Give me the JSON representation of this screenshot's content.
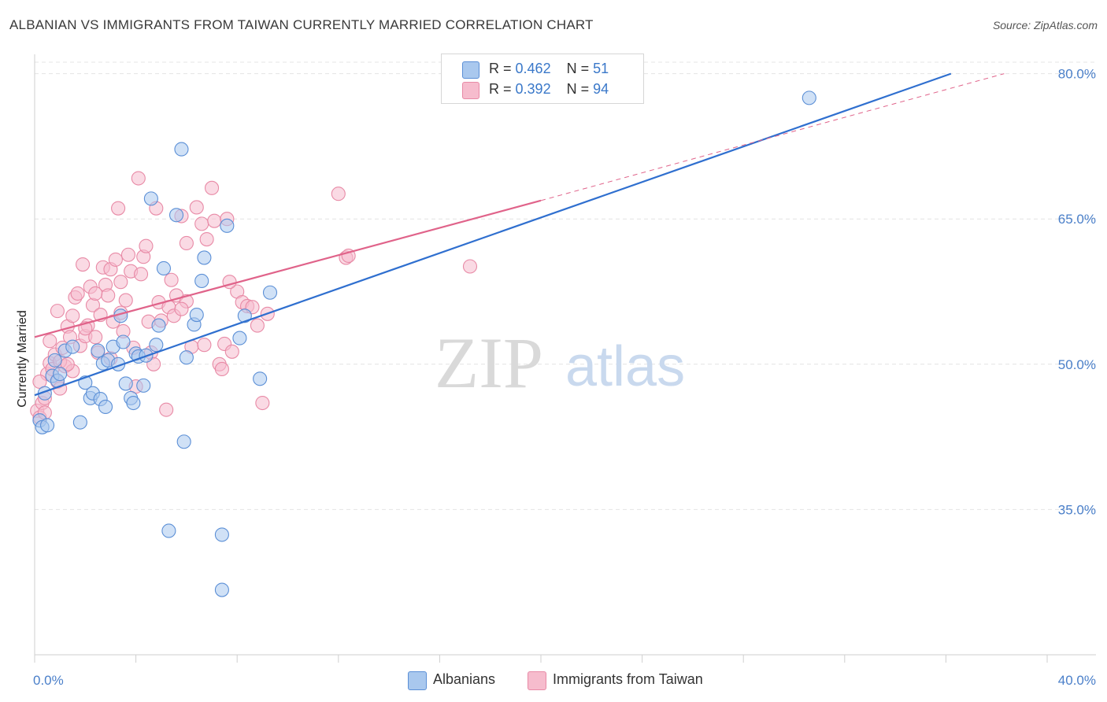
{
  "header": {
    "title": "ALBANIAN VS IMMIGRANTS FROM TAIWAN CURRENTLY MARRIED CORRELATION CHART",
    "source": "Source: ZipAtlas.com"
  },
  "watermark": {
    "zip": "ZIP",
    "atlas": "atlas"
  },
  "colors": {
    "blue_fill": "#a9c8ee",
    "blue_stroke": "#5b8fd6",
    "blue_line": "#2f6fcf",
    "pink_fill": "#f6bccd",
    "pink_stroke": "#e88aa6",
    "pink_line": "#e0638a",
    "tick_text": "#4a7fc9",
    "grid": "#e4e4e4"
  },
  "legend_top": {
    "rows": [
      {
        "r_label": "R =",
        "r_value": "0.462",
        "n_label": "N =",
        "n_value": "51"
      },
      {
        "r_label": "R =",
        "r_value": "0.392",
        "n_label": "N =",
        "n_value": "94"
      }
    ]
  },
  "bottom_legend": {
    "albanians": "Albanians",
    "taiwan": "Immigrants from Taiwan"
  },
  "chart_data": {
    "type": "scatter",
    "title": "ALBANIAN VS IMMIGRANTS FROM TAIWAN CURRENTLY MARRIED CORRELATION CHART",
    "xlabel": "",
    "ylabel": "Currently Married",
    "xlim": [
      0,
      40
    ],
    "ylim": [
      20,
      82
    ],
    "x_tick_labels": [
      "0.0%",
      "40.0%"
    ],
    "y_ticks": [
      35,
      50,
      65,
      80
    ],
    "y_tick_labels": [
      "35.0%",
      "50.0%",
      "65.0%",
      "80.0%"
    ],
    "legend_position": "top-center",
    "series": [
      {
        "name": "Albanians",
        "r": 0.462,
        "n": 51,
        "trend": {
          "x0": 0.0,
          "y0": 46.8,
          "x1": 36.2,
          "y1": 80.0,
          "dashed_to": null
        },
        "points": [
          [
            0.2,
            44.2
          ],
          [
            0.3,
            43.5
          ],
          [
            0.4,
            47.0
          ],
          [
            0.5,
            43.7
          ],
          [
            0.7,
            48.8
          ],
          [
            0.8,
            50.4
          ],
          [
            0.9,
            48.3
          ],
          [
            1.0,
            49.0
          ],
          [
            1.2,
            51.4
          ],
          [
            1.5,
            51.8
          ],
          [
            1.8,
            44.0
          ],
          [
            2.0,
            48.1
          ],
          [
            2.2,
            46.5
          ],
          [
            2.3,
            47.0
          ],
          [
            2.5,
            51.4
          ],
          [
            2.6,
            46.4
          ],
          [
            2.7,
            50.1
          ],
          [
            2.8,
            45.6
          ],
          [
            2.9,
            50.4
          ],
          [
            3.1,
            51.8
          ],
          [
            3.3,
            50.0
          ],
          [
            3.4,
            55.0
          ],
          [
            3.5,
            52.3
          ],
          [
            3.6,
            48.0
          ],
          [
            3.8,
            46.5
          ],
          [
            3.9,
            46.0
          ],
          [
            4.0,
            51.1
          ],
          [
            4.1,
            50.8
          ],
          [
            4.3,
            47.8
          ],
          [
            4.4,
            50.9
          ],
          [
            4.6,
            67.1
          ],
          [
            4.8,
            52.0
          ],
          [
            4.9,
            54.0
          ],
          [
            5.1,
            59.9
          ],
          [
            5.3,
            32.8
          ],
          [
            5.6,
            65.4
          ],
          [
            5.8,
            72.2
          ],
          [
            5.9,
            42.0
          ],
          [
            6.0,
            50.7
          ],
          [
            6.3,
            54.1
          ],
          [
            6.4,
            55.1
          ],
          [
            6.6,
            58.6
          ],
          [
            6.7,
            61.0
          ],
          [
            7.4,
            32.4
          ],
          [
            7.4,
            26.7
          ],
          [
            7.6,
            64.3
          ],
          [
            8.1,
            52.7
          ],
          [
            8.3,
            55.0
          ],
          [
            8.9,
            48.5
          ],
          [
            9.3,
            57.4
          ],
          [
            30.6,
            77.5
          ]
        ]
      },
      {
        "name": "Immigrants from Taiwan",
        "r": 0.392,
        "n": 94,
        "trend": {
          "x0": 0.0,
          "y0": 52.8,
          "x1": 20.0,
          "y1": 66.9,
          "dashed_to": [
            38.3,
            80.0
          ]
        },
        "points": [
          [
            0.1,
            45.2
          ],
          [
            0.2,
            44.5
          ],
          [
            0.3,
            46.0
          ],
          [
            0.4,
            45.0
          ],
          [
            0.5,
            49.0
          ],
          [
            0.6,
            50.1
          ],
          [
            0.7,
            49.5
          ],
          [
            0.8,
            51.0
          ],
          [
            0.9,
            48.2
          ],
          [
            1.0,
            47.5
          ],
          [
            1.1,
            51.7
          ],
          [
            1.2,
            49.8
          ],
          [
            1.3,
            53.9
          ],
          [
            1.4,
            52.8
          ],
          [
            1.5,
            55.0
          ],
          [
            1.6,
            56.9
          ],
          [
            1.7,
            57.3
          ],
          [
            1.8,
            51.9
          ],
          [
            1.9,
            60.3
          ],
          [
            2.0,
            52.9
          ],
          [
            2.1,
            54.0
          ],
          [
            2.2,
            58.0
          ],
          [
            2.3,
            56.1
          ],
          [
            2.4,
            52.8
          ],
          [
            2.5,
            51.2
          ],
          [
            2.6,
            55.1
          ],
          [
            2.7,
            60.0
          ],
          [
            2.8,
            58.2
          ],
          [
            2.9,
            57.1
          ],
          [
            3.0,
            59.8
          ],
          [
            3.1,
            54.4
          ],
          [
            3.2,
            60.8
          ],
          [
            3.3,
            66.1
          ],
          [
            3.4,
            55.3
          ],
          [
            3.5,
            53.4
          ],
          [
            3.6,
            56.6
          ],
          [
            3.7,
            61.3
          ],
          [
            3.8,
            59.6
          ],
          [
            3.9,
            51.7
          ],
          [
            4.0,
            47.7
          ],
          [
            4.1,
            69.2
          ],
          [
            4.2,
            59.3
          ],
          [
            4.3,
            61.1
          ],
          [
            4.4,
            62.2
          ],
          [
            4.5,
            54.4
          ],
          [
            4.6,
            51.2
          ],
          [
            4.7,
            50.0
          ],
          [
            4.8,
            66.1
          ],
          [
            4.9,
            56.4
          ],
          [
            5.0,
            54.5
          ],
          [
            5.2,
            45.3
          ],
          [
            5.3,
            55.9
          ],
          [
            5.4,
            58.7
          ],
          [
            5.5,
            55.0
          ],
          [
            5.6,
            57.1
          ],
          [
            5.8,
            65.3
          ],
          [
            6.0,
            56.5
          ],
          [
            6.2,
            51.8
          ],
          [
            6.4,
            66.2
          ],
          [
            6.6,
            64.5
          ],
          [
            6.7,
            52.0
          ],
          [
            6.8,
            62.9
          ],
          [
            7.0,
            68.2
          ],
          [
            7.1,
            64.8
          ],
          [
            7.3,
            50.0
          ],
          [
            7.4,
            49.5
          ],
          [
            7.5,
            52.1
          ],
          [
            7.6,
            65.0
          ],
          [
            7.8,
            51.3
          ],
          [
            8.0,
            57.5
          ],
          [
            8.2,
            56.4
          ],
          [
            8.4,
            56.0
          ],
          [
            8.6,
            55.9
          ],
          [
            8.8,
            54.0
          ],
          [
            9.0,
            46.0
          ],
          [
            9.2,
            55.2
          ],
          [
            12.0,
            67.6
          ],
          [
            12.3,
            61.0
          ],
          [
            12.4,
            61.2
          ],
          [
            17.2,
            60.1
          ],
          [
            1.0,
            50.3
          ],
          [
            1.5,
            49.3
          ],
          [
            2.0,
            53.7
          ],
          [
            0.4,
            46.5
          ],
          [
            0.9,
            55.5
          ],
          [
            3.0,
            50.6
          ],
          [
            5.8,
            55.7
          ],
          [
            7.7,
            58.5
          ],
          [
            2.4,
            57.3
          ],
          [
            3.4,
            58.5
          ],
          [
            6.0,
            62.5
          ],
          [
            1.3,
            50.0
          ],
          [
            0.2,
            48.2
          ],
          [
            0.6,
            52.4
          ]
        ]
      }
    ]
  }
}
